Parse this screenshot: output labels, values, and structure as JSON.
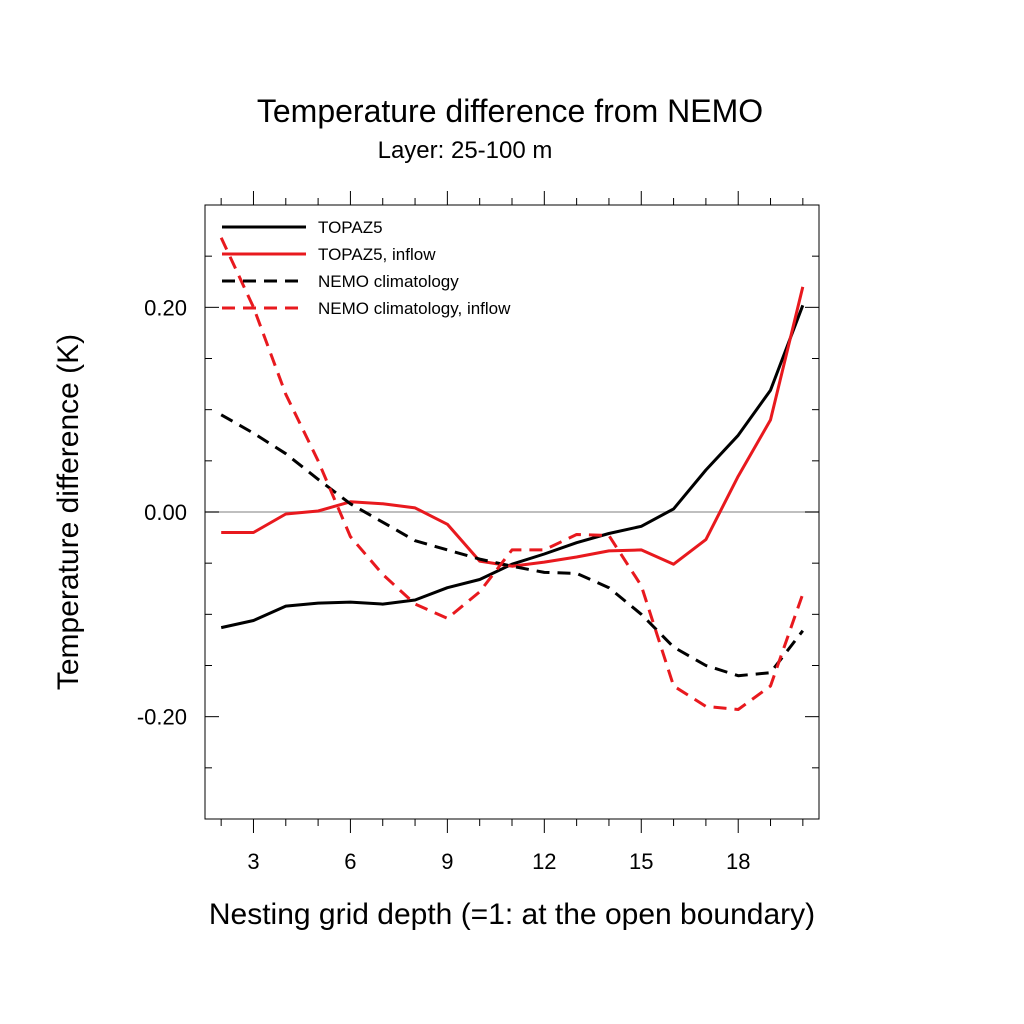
{
  "chart_data": {
    "type": "line",
    "title": "Temperature difference from NEMO",
    "subtitle": "Layer: 25-100 m",
    "xlabel": "Nesting grid depth (=1: at the open boundary)",
    "ylabel": "Temperature difference (K)",
    "xlim": [
      1.5,
      20.5
    ],
    "ylim": [
      -0.3,
      0.3
    ],
    "x_ticks": [
      3,
      6,
      9,
      12,
      15,
      18
    ],
    "x_tick_labels": [
      "3",
      "6",
      "9",
      "12",
      "15",
      "18"
    ],
    "y_ticks": [
      -0.2,
      0.0,
      0.2
    ],
    "y_tick_labels": [
      "-0.20",
      "0.00",
      "0.20"
    ],
    "grid": false,
    "zero_line": true,
    "legend_position": "top-left",
    "x": [
      2,
      3,
      4,
      5,
      6,
      7,
      8,
      9,
      10,
      11,
      12,
      13,
      14,
      15,
      16,
      17,
      18,
      19,
      20
    ],
    "series": [
      {
        "name": "TOPAZ5",
        "color": "#000000",
        "dash": "solid",
        "values": [
          -0.113,
          -0.106,
          -0.092,
          -0.089,
          -0.088,
          -0.09,
          -0.086,
          -0.074,
          -0.066,
          -0.051,
          -0.041,
          -0.03,
          -0.021,
          -0.014,
          0.003,
          0.041,
          0.075,
          0.119,
          0.202
        ]
      },
      {
        "name": "TOPAZ5, inflow",
        "color": "#e8191e",
        "dash": "solid",
        "values": [
          -0.02,
          -0.02,
          -0.002,
          0.001,
          0.01,
          0.008,
          0.004,
          -0.012,
          -0.048,
          -0.053,
          -0.049,
          -0.044,
          -0.038,
          -0.037,
          -0.051,
          -0.027,
          0.035,
          0.09,
          0.22
        ]
      },
      {
        "name": "NEMO climatology",
        "color": "#000000",
        "dash": "dashed",
        "values": [
          0.095,
          0.077,
          0.057,
          0.032,
          0.008,
          -0.01,
          -0.028,
          -0.037,
          -0.046,
          -0.053,
          -0.059,
          -0.06,
          -0.074,
          -0.1,
          -0.132,
          -0.15,
          -0.16,
          -0.157,
          -0.116
        ]
      },
      {
        "name": "NEMO climatology, inflow",
        "color": "#e8191e",
        "dash": "dashed",
        "values": [
          0.268,
          0.2,
          0.115,
          0.05,
          -0.024,
          -0.061,
          -0.09,
          -0.104,
          -0.078,
          -0.037,
          -0.037,
          -0.022,
          -0.023,
          -0.072,
          -0.17,
          -0.19,
          -0.193,
          -0.17,
          -0.08
        ]
      }
    ]
  }
}
